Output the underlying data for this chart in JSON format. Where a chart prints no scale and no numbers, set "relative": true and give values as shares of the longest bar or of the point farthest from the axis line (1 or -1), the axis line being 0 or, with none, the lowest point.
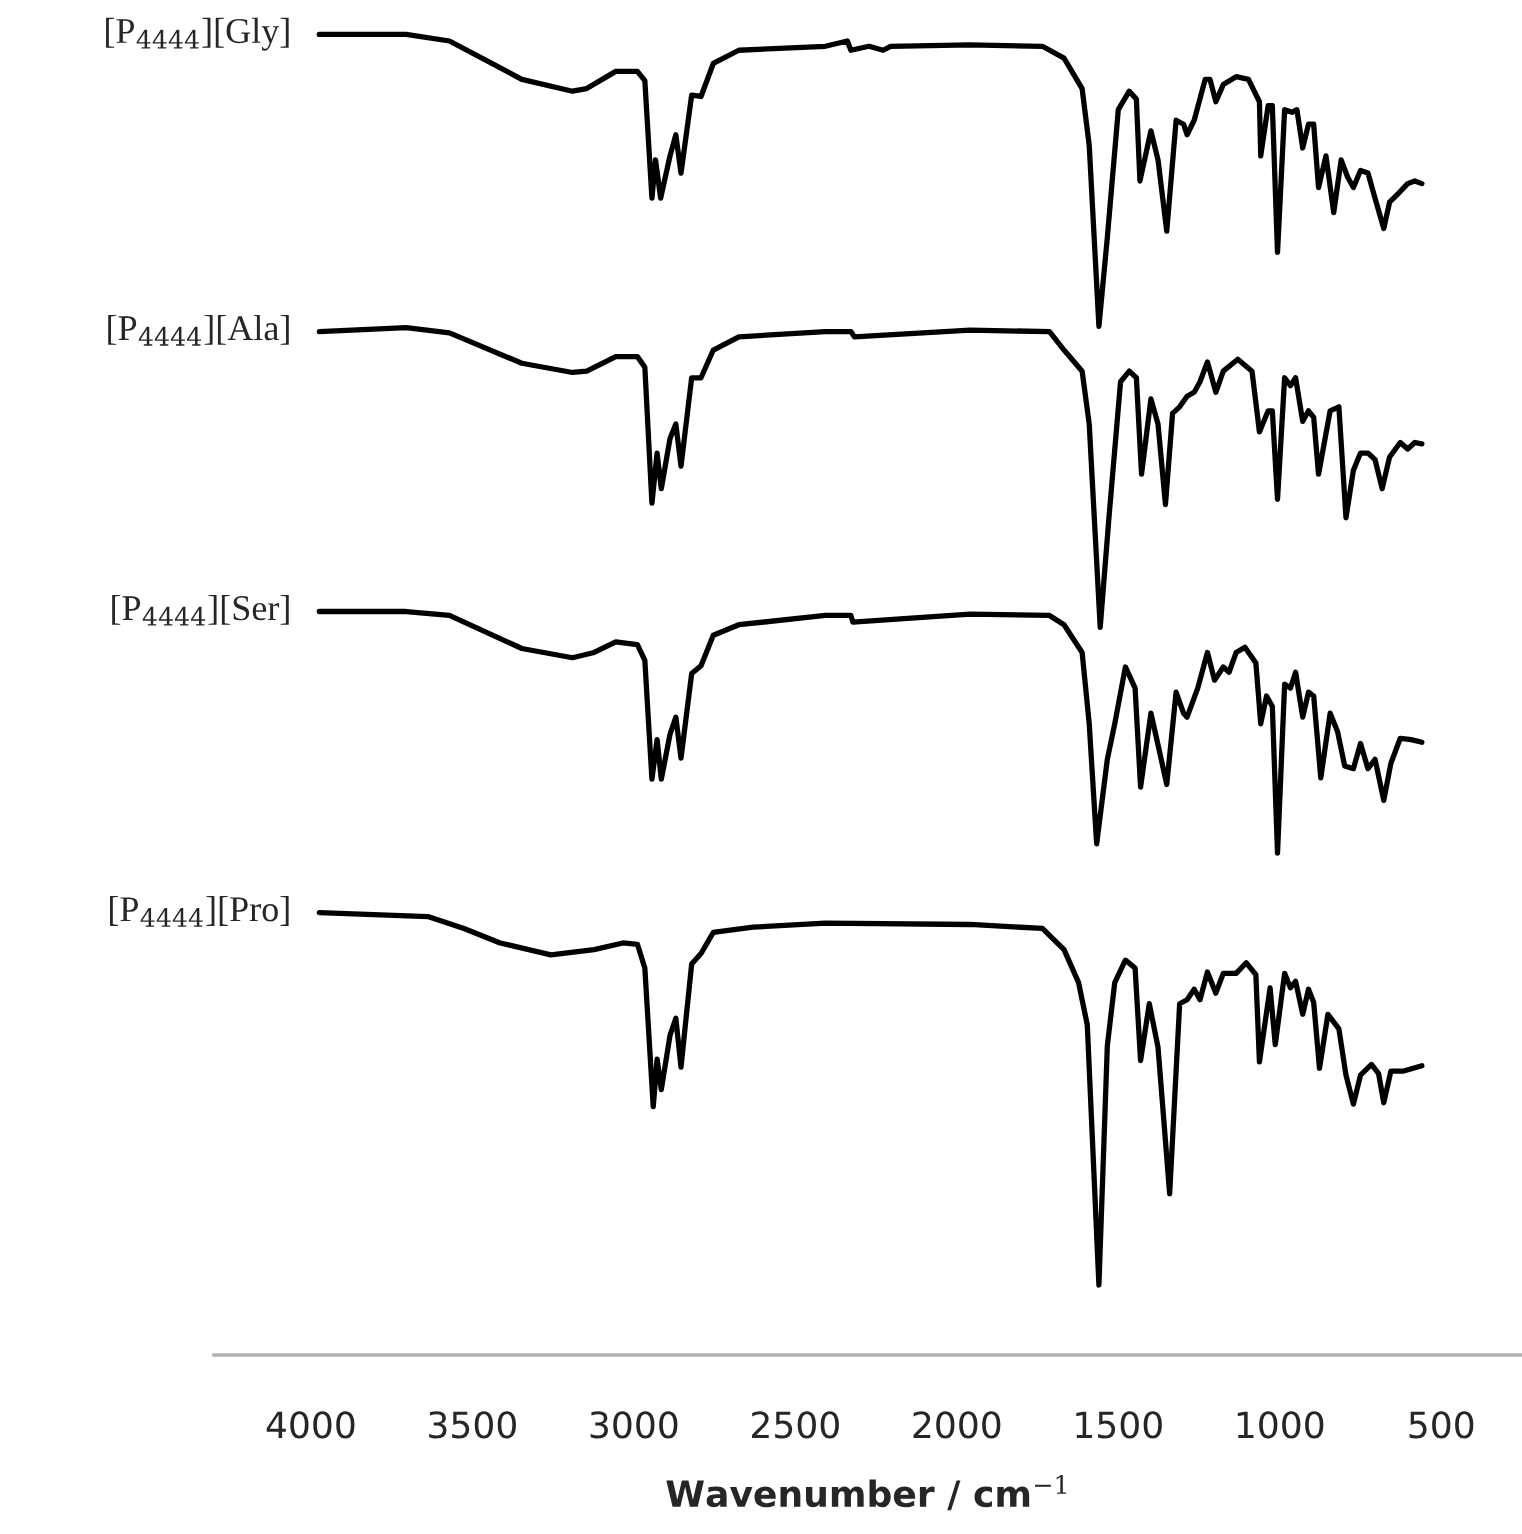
{
  "chart_data": {
    "type": "line",
    "relative": true,
    "xlabel": "Wavenumber / cm$^{−1}$",
    "xlim": [
      4300,
      250
    ],
    "xticks": [
      4000,
      3500,
      3000,
      2500,
      2000,
      1500,
      1000,
      500
    ],
    "grid": false,
    "legend": false,
    "marker": "none",
    "line_style": "solid",
    "series": [
      {
        "name": "[P$_{4444}$][Gly]",
        "color": "#000000",
        "x": [
          3974,
          3705,
          3571,
          3347,
          3190,
          3146,
          3056,
          2989,
          2966,
          2944,
          2933,
          2917,
          2888,
          2870,
          2854,
          2821,
          2792,
          2754,
          2675,
          2407,
          2339,
          2328,
          2272,
          2228,
          2205,
          1959,
          1735,
          1668,
          1612,
          1590,
          1560,
          1534,
          1500,
          1466,
          1444,
          1433,
          1399,
          1377,
          1350,
          1321,
          1298,
          1287,
          1265,
          1231,
          1216,
          1198,
          1175,
          1135,
          1097,
          1063,
          1059,
          1036,
          1023,
          1007,
          985,
          962,
          947,
          929,
          911,
          895,
          880,
          857,
          833,
          810,
          790,
          772,
          750,
          727,
          705,
          678,
          660,
          627,
          604,
          582,
          560
        ],
        "values": [
          1.0,
          1.0,
          0.995,
          0.966,
          0.957,
          0.959,
          0.972,
          0.972,
          0.965,
          0.876,
          0.905,
          0.876,
          0.908,
          0.924,
          0.895,
          0.954,
          0.953,
          0.978,
          0.988,
          0.991,
          0.995,
          0.988,
          0.991,
          0.988,
          0.991,
          0.992,
          0.991,
          0.982,
          0.959,
          0.916,
          0.779,
          0.846,
          0.943,
          0.957,
          0.951,
          0.889,
          0.927,
          0.905,
          0.851,
          0.935,
          0.932,
          0.924,
          0.935,
          0.966,
          0.966,
          0.949,
          0.962,
          0.968,
          0.966,
          0.949,
          0.908,
          0.946,
          0.946,
          0.835,
          0.943,
          0.941,
          0.943,
          0.914,
          0.932,
          0.932,
          0.884,
          0.908,
          0.865,
          0.905,
          0.892,
          0.884,
          0.897,
          0.895,
          0.876,
          0.853,
          0.873,
          0.881,
          0.887,
          0.889,
          0.887
        ]
      },
      {
        "name": "[P$_{4444}$][Ala]",
        "color": "#000000",
        "x": [
          3974,
          3705,
          3571,
          3347,
          3190,
          3146,
          3056,
          2989,
          2966,
          2944,
          2928,
          2915,
          2888,
          2870,
          2854,
          2821,
          2792,
          2754,
          2675,
          2407,
          2328,
          2317,
          1959,
          1713,
          1668,
          1612,
          1590,
          1556,
          1529,
          1493,
          1466,
          1444,
          1428,
          1399,
          1377,
          1354,
          1332,
          1310,
          1287,
          1265,
          1247,
          1224,
          1198,
          1175,
          1130,
          1086,
          1063,
          1036,
          1023,
          1007,
          985,
          967,
          951,
          929,
          911,
          895,
          880,
          844,
          817,
          795,
          772,
          750,
          727,
          705,
          683,
          660,
          627,
          604,
          582,
          560
        ],
        "values": [
          0.775,
          0.778,
          0.774,
          0.751,
          0.744,
          0.745,
          0.756,
          0.756,
          0.748,
          0.645,
          0.683,
          0.656,
          0.694,
          0.705,
          0.673,
          0.74,
          0.74,
          0.761,
          0.771,
          0.775,
          0.775,
          0.771,
          0.776,
          0.775,
          0.761,
          0.745,
          0.705,
          0.551,
          0.634,
          0.737,
          0.745,
          0.74,
          0.667,
          0.724,
          0.705,
          0.644,
          0.713,
          0.718,
          0.726,
          0.729,
          0.737,
          0.752,
          0.729,
          0.745,
          0.754,
          0.745,
          0.699,
          0.715,
          0.715,
          0.648,
          0.74,
          0.734,
          0.74,
          0.707,
          0.715,
          0.71,
          0.667,
          0.715,
          0.718,
          0.634,
          0.67,
          0.683,
          0.683,
          0.678,
          0.656,
          0.68,
          0.691,
          0.686,
          0.691,
          0.69
        ]
      },
      {
        "name": "[P$_{4444}$][Ser]",
        "color": "#000000",
        "x": [
          3974,
          3705,
          3571,
          3347,
          3190,
          3123,
          3056,
          2989,
          2966,
          2944,
          2928,
          2915,
          2888,
          2870,
          2854,
          2821,
          2792,
          2754,
          2675,
          2407,
          2328,
          2322,
          1959,
          1713,
          1668,
          1612,
          1590,
          1567,
          1534,
          1511,
          1478,
          1448,
          1431,
          1399,
          1377,
          1350,
          1321,
          1298,
          1287,
          1254,
          1224,
          1202,
          1175,
          1157,
          1135,
          1108,
          1074,
          1059,
          1041,
          1023,
          1007,
          985,
          967,
          951,
          929,
          911,
          895,
          873,
          844,
          821,
          799,
          772,
          750,
          727,
          705,
          678,
          656,
          627,
          593,
          560
        ],
        "values": [
          0.563,
          0.563,
          0.56,
          0.535,
          0.528,
          0.532,
          0.54,
          0.538,
          0.526,
          0.436,
          0.466,
          0.436,
          0.47,
          0.483,
          0.452,
          0.516,
          0.522,
          0.545,
          0.553,
          0.56,
          0.56,
          0.555,
          0.561,
          0.56,
          0.553,
          0.532,
          0.478,
          0.387,
          0.451,
          0.478,
          0.521,
          0.505,
          0.43,
          0.486,
          0.462,
          0.432,
          0.502,
          0.486,
          0.483,
          0.505,
          0.532,
          0.511,
          0.521,
          0.517,
          0.532,
          0.536,
          0.524,
          0.478,
          0.499,
          0.491,
          0.38,
          0.508,
          0.505,
          0.517,
          0.483,
          0.502,
          0.499,
          0.437,
          0.486,
          0.472,
          0.446,
          0.444,
          0.463,
          0.444,
          0.451,
          0.42,
          0.448,
          0.467,
          0.466,
          0.464
        ]
      },
      {
        "name": "[P$_{4444}$][Pro]",
        "color": "#000000",
        "x": [
          3974,
          3638,
          3526,
          3414,
          3257,
          3123,
          3034,
          2989,
          2966,
          2940,
          2928,
          2915,
          2888,
          2870,
          2854,
          2821,
          2792,
          2754,
          2631,
          2407,
          1959,
          1735,
          1668,
          1623,
          1596,
          1560,
          1534,
          1511,
          1478,
          1448,
          1431,
          1404,
          1377,
          1341,
          1310,
          1287,
          1265,
          1247,
          1224,
          1198,
          1175,
          1135,
          1104,
          1074,
          1063,
          1030,
          1014,
          985,
          967,
          951,
          929,
          911,
          895,
          877,
          851,
          817,
          795,
          772,
          750,
          716,
          694,
          678,
          656,
          616,
          560
        ],
        "values": [
          0.335,
          0.332,
          0.323,
          0.312,
          0.303,
          0.307,
          0.312,
          0.311,
          0.293,
          0.188,
          0.224,
          0.201,
          0.242,
          0.255,
          0.218,
          0.296,
          0.304,
          0.32,
          0.324,
          0.327,
          0.326,
          0.323,
          0.307,
          0.282,
          0.25,
          0.053,
          0.234,
          0.282,
          0.299,
          0.293,
          0.223,
          0.266,
          0.233,
          0.122,
          0.266,
          0.269,
          0.277,
          0.269,
          0.29,
          0.274,
          0.289,
          0.289,
          0.297,
          0.288,
          0.222,
          0.278,
          0.235,
          0.289,
          0.278,
          0.283,
          0.258,
          0.277,
          0.267,
          0.217,
          0.258,
          0.247,
          0.212,
          0.19,
          0.212,
          0.22,
          0.213,
          0.191,
          0.215,
          0.215,
          0.219
        ]
      }
    ]
  }
}
